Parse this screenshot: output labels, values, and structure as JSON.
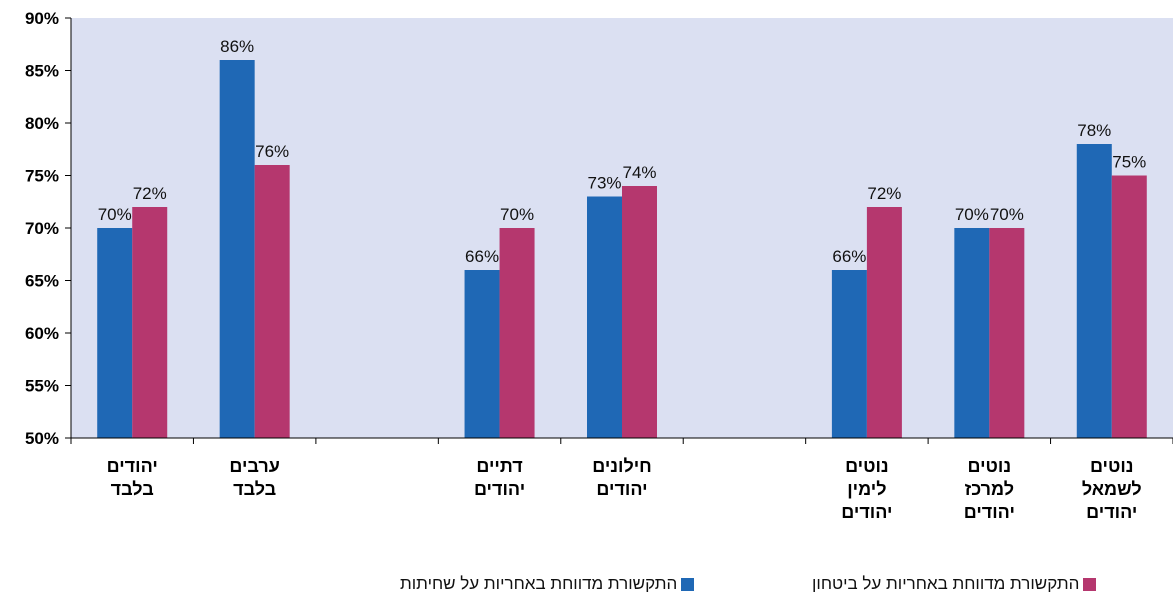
{
  "chart_data": {
    "type": "bar",
    "categories": [
      [
        "יהודים",
        "בלבד"
      ],
      [
        "ערבים",
        "בלבד"
      ],
      [],
      [
        "דתיים",
        "יהודים"
      ],
      [
        "חילונים",
        "יהודים"
      ],
      [],
      [
        "נוטים",
        "לימין",
        "יהודים"
      ],
      [
        "נוטים",
        "למרכז",
        "יהודים"
      ],
      [
        "נוטים",
        "לשמאל",
        "יהודים"
      ]
    ],
    "series": [
      {
        "name": "התקשורת מדווחת באחריות על שחיתות",
        "color": "#1f68b5",
        "values": [
          70,
          86,
          null,
          66,
          73,
          null,
          66,
          70,
          78
        ]
      },
      {
        "name": "התקשורת מדווחת באחריות על ביטחון",
        "color": "#b5376e",
        "values": [
          72,
          76,
          null,
          70,
          74,
          null,
          72,
          70,
          75
        ]
      }
    ],
    "data_labels": [
      [
        "70%",
        "86%",
        "",
        "66%",
        "73%",
        "",
        "66%",
        "70%",
        "78%"
      ],
      [
        "72%",
        "76%",
        "",
        "70%",
        "74%",
        "",
        "72%",
        "70%",
        "75%"
      ]
    ],
    "yticks": [
      "50%",
      "55%",
      "60%",
      "65%",
      "70%",
      "75%",
      "80%",
      "85%",
      "90%"
    ],
    "ylim": [
      50,
      90
    ],
    "plot_background": "#dbe0f2",
    "grid": false,
    "legend_position": "bottom"
  },
  "legend": {
    "corruption_label": "התקשורת מדווחת באחריות על שחיתות",
    "security_label": "התקשורת מדווחת באחריות על ביטחון"
  }
}
